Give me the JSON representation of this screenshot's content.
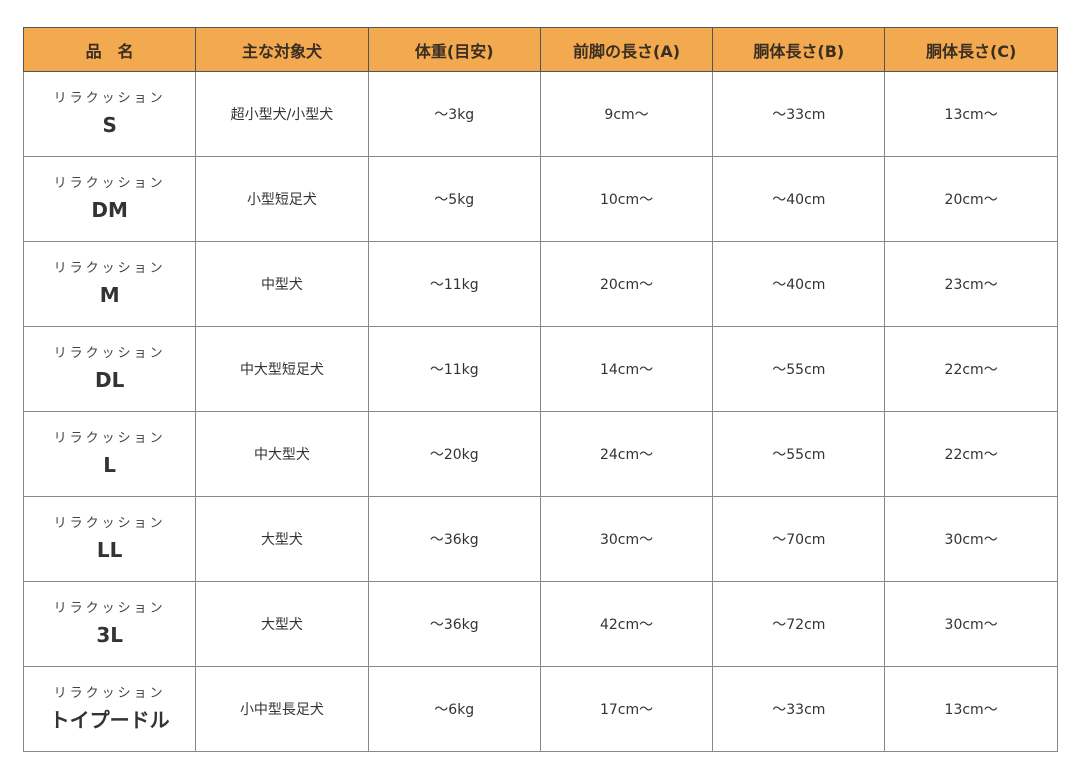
{
  "headers": [
    "品　名",
    "主な対象犬",
    "体重(目安)",
    "前脚の長さ(A)",
    "胴体長さ(B)",
    "胴体長さ(C)"
  ],
  "header_color": "#f2a94f",
  "rows": [
    {
      "series": "リラクッション",
      "size": "S",
      "target": "超小型犬/小型犬",
      "weight": "～3kg",
      "leg_a": "9cm～",
      "body_b": "～33cm",
      "body_c": "13cm～"
    },
    {
      "series": "リラクッション",
      "size": "DM",
      "target": "小型短足犬",
      "weight": "～5kg",
      "leg_a": "10cm～",
      "body_b": "～40cm",
      "body_c": "20cm～"
    },
    {
      "series": "リラクッション",
      "size": "M",
      "target": "中型犬",
      "weight": "～11kg",
      "leg_a": "20cm～",
      "body_b": "～40cm",
      "body_c": "23cm～"
    },
    {
      "series": "リラクッション",
      "size": "DL",
      "target": "中大型短足犬",
      "weight": "～11kg",
      "leg_a": "14cm～",
      "body_b": "～55cm",
      "body_c": "22cm～"
    },
    {
      "series": "リラクッション",
      "size": "L",
      "target": "中大型犬",
      "weight": "～20kg",
      "leg_a": "24cm～",
      "body_b": "～55cm",
      "body_c": "22cm～"
    },
    {
      "series": "リラクッション",
      "size": "LL",
      "target": "大型犬",
      "weight": "～36kg",
      "leg_a": "30cm～",
      "body_b": "～70cm",
      "body_c": "30cm～"
    },
    {
      "series": "リラクッション",
      "size": "3L",
      "target": "大型犬",
      "weight": "～36kg",
      "leg_a": "42cm～",
      "body_b": "～72cm",
      "body_c": "30cm～"
    },
    {
      "series": "リラクッション",
      "size": "トイプードル",
      "target": "小中型長足犬",
      "weight": "～6kg",
      "leg_a": "17cm～",
      "body_b": "～33cm",
      "body_c": "13cm～"
    }
  ]
}
